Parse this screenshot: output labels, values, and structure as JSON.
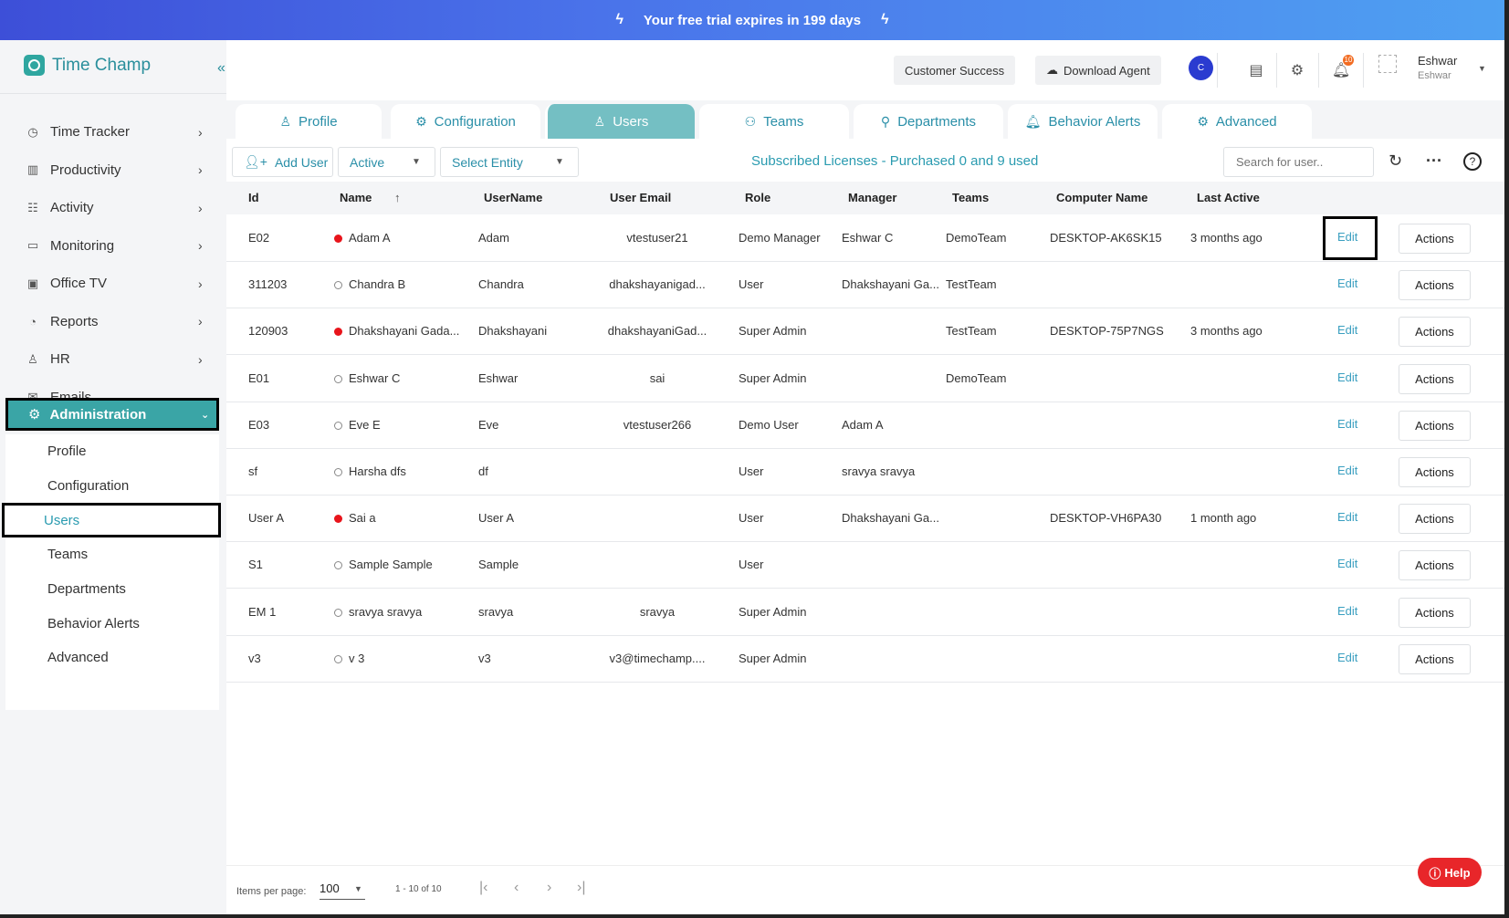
{
  "banner": {
    "text": "Your free trial expires in 199 days",
    "icon": "lightning-icon"
  },
  "brand": {
    "name": "Time Champ",
    "accent": "#3aa5a6"
  },
  "sidebar": {
    "items": [
      {
        "label": "Time Tracker",
        "icon": "clock-icon"
      },
      {
        "label": "Productivity",
        "icon": "chart-icon"
      },
      {
        "label": "Activity",
        "icon": "activity-icon"
      },
      {
        "label": "Monitoring",
        "icon": "monitor-icon"
      },
      {
        "label": "Office TV",
        "icon": "tv-icon"
      },
      {
        "label": "Reports",
        "icon": "pie-icon"
      },
      {
        "label": "HR",
        "icon": "person-icon"
      },
      {
        "label": "Emails",
        "icon": "mail-icon"
      }
    ],
    "admin": {
      "label": "Administration",
      "icon": "gear-icon"
    },
    "admin_sub": [
      "Profile",
      "Configuration",
      "Users",
      "Teams",
      "Departments",
      "Behavior Alerts",
      "Advanced"
    ],
    "active_sub": "Users"
  },
  "header": {
    "customer_success": "Customer Success",
    "download_agent": "Download Agent",
    "notifications_count": "10",
    "user_name": "Eshwar",
    "user_sub": "Eshwar"
  },
  "tabs": [
    {
      "label": "Profile",
      "icon": "person-icon"
    },
    {
      "label": "Configuration",
      "icon": "gears-icon"
    },
    {
      "label": "Users",
      "icon": "users-icon"
    },
    {
      "label": "Teams",
      "icon": "team-icon"
    },
    {
      "label": "Departments",
      "icon": "org-icon"
    },
    {
      "label": "Behavior Alerts",
      "icon": "bell-icon"
    },
    {
      "label": "Advanced",
      "icon": "gear-icon"
    }
  ],
  "active_tab": "Users",
  "toolbar": {
    "add_user": "Add User",
    "status_filter": "Active",
    "entity_filter": "Select Entity",
    "licenses": "Subscribed Licenses - Purchased 0 and 9 used",
    "search_placeholder": "Search for user.."
  },
  "table": {
    "columns": [
      "Id",
      "Name",
      "UserName",
      "User Email",
      "Role",
      "Manager",
      "Teams",
      "Computer Name",
      "Last Active"
    ],
    "edit_label": "Edit",
    "actions_label": "Actions",
    "rows": [
      {
        "id": "E02",
        "name": "Adam A",
        "online": true,
        "username": "Adam",
        "email": "vtestuser21",
        "role": "Demo Manager",
        "manager": "Eshwar C",
        "teams": "DemoTeam",
        "computer": "DESKTOP-AK6SK15",
        "last_active": "3 months ago"
      },
      {
        "id": "311203",
        "name": "Chandra B",
        "online": false,
        "username": "Chandra",
        "email": "dhakshayanigad...",
        "role": "User",
        "manager": "Dhakshayani Ga...",
        "teams": "TestTeam",
        "computer": "",
        "last_active": ""
      },
      {
        "id": "120903",
        "name": "Dhakshayani Gada...",
        "online": true,
        "username": "Dhakshayani",
        "email": "dhakshayaniGad...",
        "role": "Super Admin",
        "manager": "",
        "teams": "TestTeam",
        "computer": "DESKTOP-75P7NGS",
        "last_active": "3 months ago"
      },
      {
        "id": "E01",
        "name": "Eshwar C",
        "online": false,
        "username": "Eshwar",
        "email": "sai",
        "role": "Super Admin",
        "manager": "",
        "teams": "DemoTeam",
        "computer": "",
        "last_active": ""
      },
      {
        "id": "E03",
        "name": "Eve E",
        "online": false,
        "username": "Eve",
        "email": "vtestuser266",
        "role": "Demo User",
        "manager": "Adam A",
        "teams": "",
        "computer": "",
        "last_active": ""
      },
      {
        "id": "sf",
        "name": "Harsha dfs",
        "online": false,
        "username": "df",
        "email": "",
        "role": "User",
        "manager": "sravya sravya",
        "teams": "",
        "computer": "",
        "last_active": ""
      },
      {
        "id": "User A",
        "name": "Sai a",
        "online": true,
        "username": "User A",
        "email": "",
        "role": "User",
        "manager": "Dhakshayani Ga...",
        "teams": "",
        "computer": "DESKTOP-VH6PA30",
        "last_active": "1 month ago"
      },
      {
        "id": "S1",
        "name": "Sample Sample",
        "online": false,
        "username": "Sample",
        "email": "",
        "role": "User",
        "manager": "",
        "teams": "",
        "computer": "",
        "last_active": ""
      },
      {
        "id": "EM 1",
        "name": "sravya sravya",
        "online": false,
        "username": "sravya",
        "email": "sravya",
        "role": "Super Admin",
        "manager": "",
        "teams": "",
        "computer": "",
        "last_active": ""
      },
      {
        "id": "v3",
        "name": "v 3",
        "online": false,
        "username": "v3",
        "email": "v3@timechamp....",
        "role": "Super Admin",
        "manager": "",
        "teams": "",
        "computer": "",
        "last_active": ""
      }
    ]
  },
  "pagination": {
    "label": "Items per page:",
    "per_page": "100",
    "range": "1 - 10 of 10"
  },
  "help": {
    "label": "Help"
  }
}
